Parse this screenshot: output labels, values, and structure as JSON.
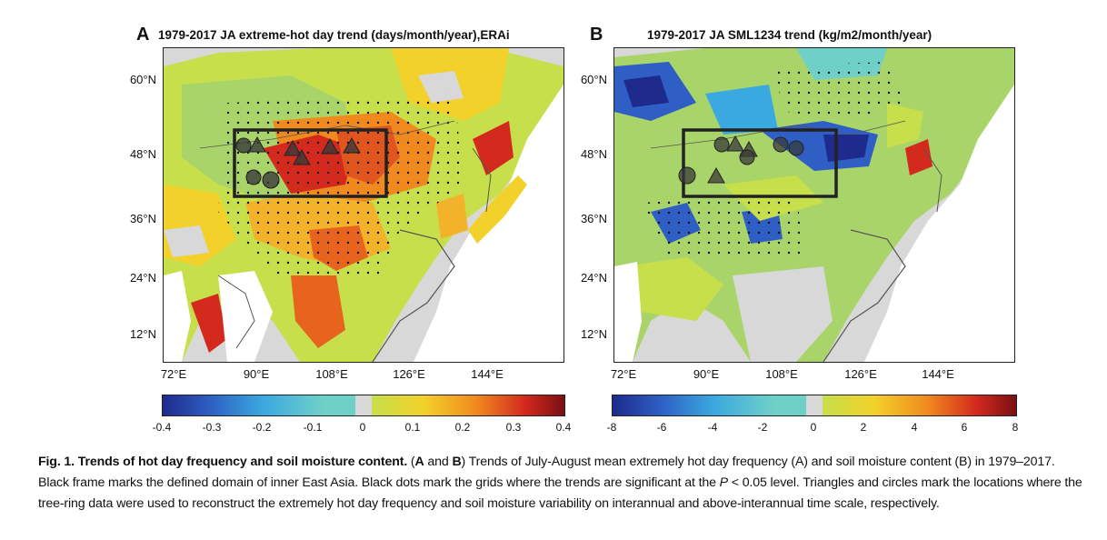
{
  "panels": [
    {
      "letter": "A",
      "title": "1979-2017 JA extreme-hot day trend (days/month/year),ERAi",
      "lat_labels": [
        "60°N",
        "48°N",
        "36°N",
        "24°N",
        "12°N"
      ],
      "lon_labels": [
        "72°E",
        "90°E",
        "108°E",
        "126°E",
        "144°E"
      ],
      "colorbar_ticks": [
        "-0.4",
        "-0.3",
        "-0.2",
        "-0.1",
        "0",
        "0.1",
        "0.2",
        "0.3",
        "0.4"
      ]
    },
    {
      "letter": "B",
      "title": "1979-2017 JA SML1234 trend (kg/m2/month/year)",
      "lat_labels": [
        "60°N",
        "48°N",
        "36°N",
        "24°N",
        "12°N"
      ],
      "lon_labels": [
        "72°E",
        "90°E",
        "108°E",
        "126°E",
        "144°E"
      ],
      "colorbar_ticks": [
        "-8",
        "-6",
        "-4",
        "-2",
        "0",
        "2",
        "4",
        "6",
        "8"
      ]
    }
  ],
  "colors": {
    "colormap": [
      "#1e2a8c",
      "#2f5fc4",
      "#39a9e0",
      "#6fd0c8",
      "#d8d8d8",
      "#c6df4a",
      "#f2d12a",
      "#f08a1e",
      "#d42a1e",
      "#7a0f12"
    ],
    "land_missing": "#d8d8d8",
    "domain_frame": "#222222"
  },
  "caption": {
    "fig_label": "Fig. 1. Trends of hot day frequency and soil moisture content.",
    "p1": " (",
    "A": "A",
    "and": " and ",
    "B": "B",
    "p2": ") Trends of July-August mean extremely hot day frequency (A) and soil moisture content (B) in 1979–2017. Black frame marks the defined domain of inner East Asia. Black dots mark the grids where the trends are significant at the ",
    "P": "P",
    "p3": " < 0.05 level. Triangles and circles mark the locations where the tree-ring data were used to reconstruct the extremely hot day frequency and soil moisture variability on interannual and above-interannual time scale, respectively."
  }
}
